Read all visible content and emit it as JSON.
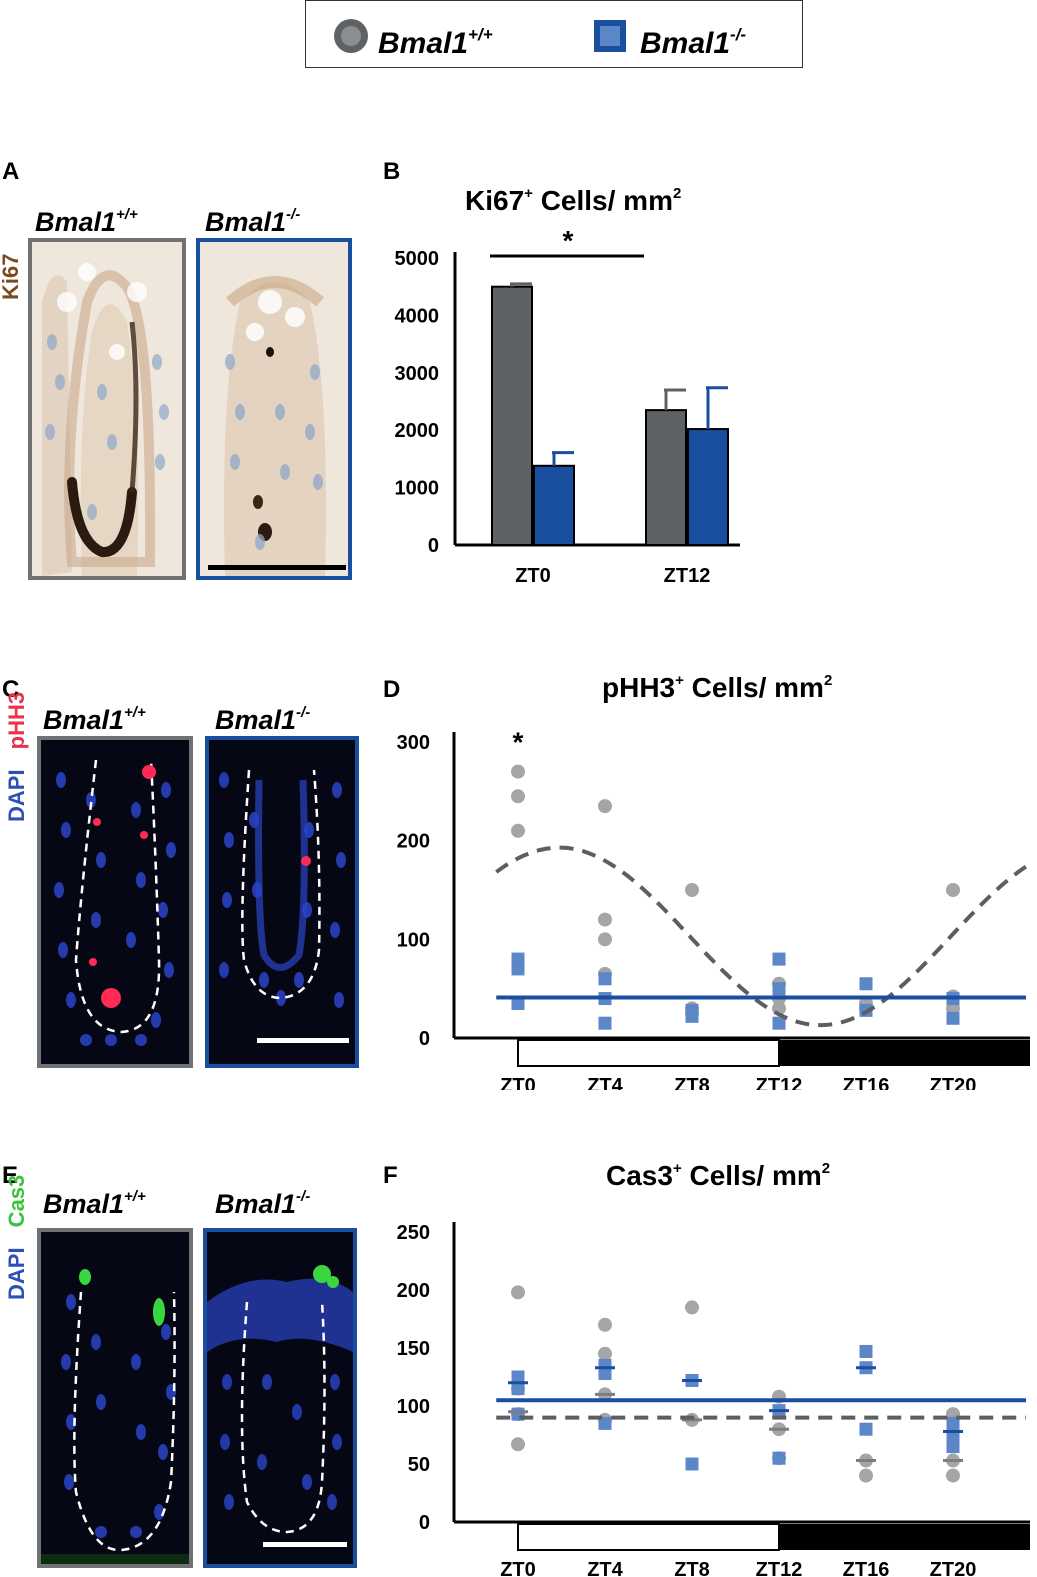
{
  "legend": {
    "wt_label": "Bmal1",
    "wt_sup": "+/+",
    "ko_label": "Bmal1",
    "ko_sup": "-/-",
    "wt_color": "#5f6264",
    "ko_color": "#1a4fa0"
  },
  "panels": {
    "A": "A",
    "B": "B",
    "C": "C",
    "D": "D",
    "E": "E",
    "F": "F"
  },
  "micrographs": {
    "wt_title": "Bmal1",
    "wt_sup": "+/+",
    "ko_title": "Bmal1",
    "ko_sup": "-/-",
    "ki67_label": "Ki67",
    "phh3_label": "pHH3",
    "cas3_label": "Cas3",
    "dapi_label": "DAPI",
    "ki67_color": "#7a4a1e",
    "phh3_color": "#e8334a",
    "cas3_color": "#39c23a",
    "dapi_color": "#2e4fb8"
  },
  "chart_data": [
    {
      "id": "B",
      "type": "bar",
      "title": "Ki67",
      "title_sup": "+",
      "title_rest": " Cells/ mm",
      "title_sup2": "2",
      "categories": [
        "ZT0",
        "ZT12"
      ],
      "yticks": [
        "0",
        "1000",
        "2000",
        "3000",
        "4000",
        "5000"
      ],
      "ylim": [
        0,
        5000
      ],
      "series": [
        {
          "values": [
            4500,
            2350
          ],
          "errors": [
            50,
            350
          ],
          "color": "#5f6264"
        },
        {
          "values": [
            1380,
            2020
          ],
          "errors": [
            230,
            720
          ],
          "color": "#1a4fa0"
        }
      ],
      "significance": "*"
    },
    {
      "id": "D",
      "type": "scatter",
      "title": "pHH3",
      "title_sup": "+",
      "title_rest": " Cells/ mm",
      "title_sup2": "2",
      "categories": [
        "ZT0",
        "ZT4",
        "ZT8",
        "ZT12",
        "ZT16",
        "ZT20"
      ],
      "yticks": [
        "0",
        "100",
        "200",
        "300"
      ],
      "ylim": [
        0,
        300
      ],
      "wt_points": [
        [
          0,
          270
        ],
        [
          0,
          245
        ],
        [
          0,
          210
        ],
        [
          4,
          235
        ],
        [
          4,
          120
        ],
        [
          4,
          100
        ],
        [
          4,
          65
        ],
        [
          8,
          150
        ],
        [
          8,
          30
        ],
        [
          8,
          25
        ],
        [
          12,
          55
        ],
        [
          12,
          40
        ],
        [
          12,
          30
        ],
        [
          16,
          35
        ],
        [
          16,
          30
        ],
        [
          20,
          150
        ],
        [
          20,
          42
        ],
        [
          20,
          30
        ]
      ],
      "ko_points": [
        [
          0,
          80
        ],
        [
          0,
          70
        ],
        [
          0,
          35
        ],
        [
          4,
          60
        ],
        [
          4,
          40
        ],
        [
          4,
          15
        ],
        [
          8,
          28
        ],
        [
          8,
          22
        ],
        [
          12,
          80
        ],
        [
          12,
          50
        ],
        [
          12,
          15
        ],
        [
          16,
          55
        ],
        [
          16,
          28
        ],
        [
          20,
          40
        ],
        [
          20,
          20
        ]
      ],
      "ko_mean": 41,
      "wt_fit": {
        "mesor": 103,
        "amplitude": 90,
        "peak_zt": 1.9
      },
      "significance": "*",
      "sig_x": 0
    },
    {
      "id": "F",
      "type": "scatter",
      "title": "Cas3",
      "title_sup": "+",
      "title_rest": " Cells/ mm",
      "title_sup2": "2",
      "categories": [
        "ZT0",
        "ZT4",
        "ZT8",
        "ZT12",
        "ZT16",
        "ZT20"
      ],
      "yticks": [
        "0",
        "50",
        "100",
        "150",
        "200",
        "250"
      ],
      "ylim": [
        0,
        250
      ],
      "wt_points": [
        [
          0,
          198
        ],
        [
          0,
          115
        ],
        [
          0,
          93
        ],
        [
          0,
          67
        ],
        [
          4,
          170
        ],
        [
          4,
          145
        ],
        [
          4,
          110
        ],
        [
          4,
          88
        ],
        [
          8,
          185
        ],
        [
          8,
          88
        ],
        [
          12,
          108
        ],
        [
          12,
          80
        ],
        [
          12,
          55
        ],
        [
          16,
          53
        ],
        [
          16,
          40
        ],
        [
          20,
          93
        ],
        [
          20,
          53
        ],
        [
          20,
          40
        ]
      ],
      "ko_points": [
        [
          0,
          125
        ],
        [
          0,
          115
        ],
        [
          0,
          93
        ],
        [
          4,
          135
        ],
        [
          4,
          128
        ],
        [
          4,
          85
        ],
        [
          8,
          122
        ],
        [
          8,
          50
        ],
        [
          12,
          96
        ],
        [
          12,
          55
        ],
        [
          16,
          147
        ],
        [
          16,
          133
        ],
        [
          16,
          80
        ],
        [
          20,
          85
        ],
        [
          20,
          75
        ],
        [
          20,
          65
        ]
      ],
      "wt_means": [
        [
          0,
          95
        ],
        [
          4,
          110
        ],
        [
          8,
          88
        ],
        [
          12,
          80
        ],
        [
          16,
          53
        ],
        [
          20,
          53
        ]
      ],
      "ko_means": [
        [
          0,
          120
        ],
        [
          4,
          133
        ],
        [
          8,
          122
        ],
        [
          12,
          96
        ],
        [
          16,
          133
        ],
        [
          20,
          78
        ]
      ],
      "ko_mean": 105,
      "wt_mean": 90
    }
  ]
}
